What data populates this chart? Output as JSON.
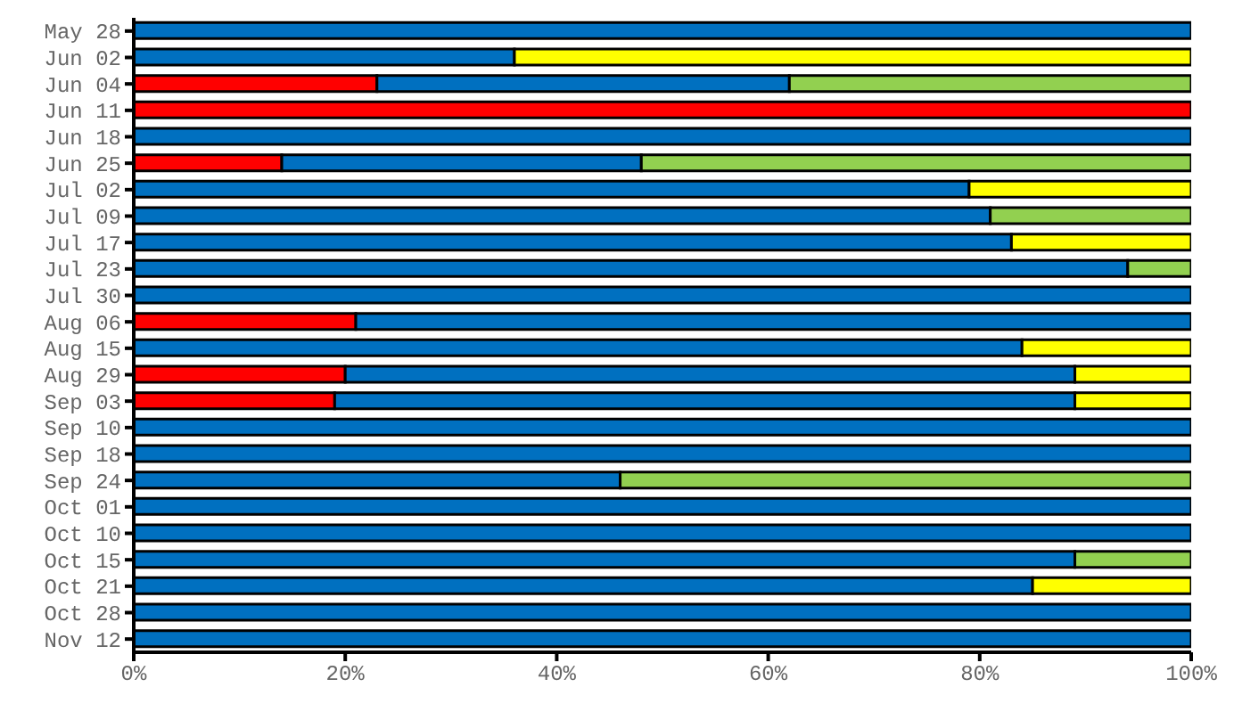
{
  "chart_data": {
    "type": "bar",
    "orientation": "horizontal",
    "stacked": true,
    "categories": [
      "May 28",
      "Jun 02",
      "Jun 04",
      "Jun 11",
      "Jun 18",
      "Jun 25",
      "Jul 02",
      "Jul 09",
      "Jul 17",
      "Jul 23",
      "Jul 30",
      "Aug 06",
      "Aug 15",
      "Aug 29",
      "Sep 03",
      "Sep 10",
      "Sep 18",
      "Sep 24",
      "Oct 01",
      "Oct 10",
      "Oct 15",
      "Oct 21",
      "Oct 28",
      "Nov 12"
    ],
    "series": [
      {
        "color": "#ff0000",
        "values": [
          0,
          0,
          23,
          100,
          0,
          14,
          0,
          0,
          0,
          0,
          0,
          21,
          0,
          20,
          19,
          0,
          0,
          0,
          0,
          0,
          0,
          0,
          0,
          0
        ]
      },
      {
        "color": "#0070c0",
        "values": [
          100,
          36,
          39,
          0,
          100,
          34,
          79,
          81,
          83,
          94,
          100,
          79,
          84,
          69,
          70,
          100,
          100,
          46,
          100,
          100,
          89,
          85,
          100,
          100
        ]
      },
      {
        "color": "#92d050",
        "values": [
          0,
          0,
          38,
          0,
          0,
          52,
          0,
          19,
          0,
          6,
          0,
          0,
          0,
          0,
          0,
          0,
          0,
          54,
          0,
          0,
          11,
          0,
          0,
          0
        ]
      },
      {
        "color": "#ffff00",
        "values": [
          0,
          64,
          0,
          0,
          0,
          0,
          21,
          0,
          17,
          0,
          0,
          0,
          16,
          11,
          11,
          0,
          0,
          0,
          0,
          0,
          0,
          15,
          0,
          0
        ]
      }
    ],
    "xlim": [
      0,
      100
    ],
    "xticks": [
      {
        "value": 0,
        "label": "0%"
      },
      {
        "value": 20,
        "label": "20%"
      },
      {
        "value": 40,
        "label": "40%"
      },
      {
        "value": 60,
        "label": "60%"
      },
      {
        "value": 80,
        "label": "80%"
      },
      {
        "value": 100,
        "label": "100%"
      }
    ],
    "grid": false,
    "legend": false
  }
}
